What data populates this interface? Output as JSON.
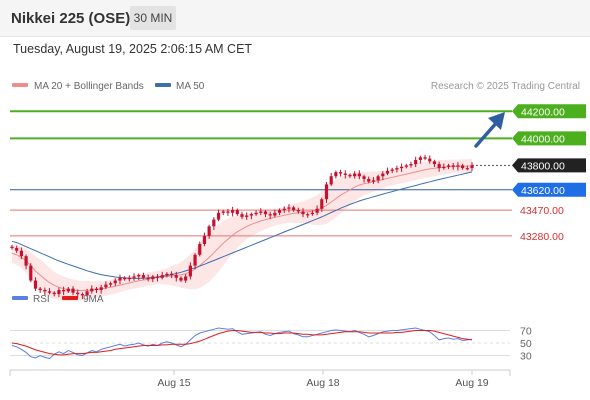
{
  "header": {
    "instrument": "Nikkei 225 (OSE)",
    "timeframe": "30 MIN",
    "timestamp": "Tuesday, August 19, 2025 2:06:15 AM CET"
  },
  "legend": {
    "ma20": "MA 20 + Bollinger Bands",
    "ma50": "MA 50",
    "credit": "Research © 2025 Trading Central",
    "rsi": "RSI",
    "ma9": "9MA"
  },
  "colors": {
    "candle": "#c8102e",
    "resistance": "#4caf1e",
    "pivot": "#2f5f9e",
    "support": "#e57373",
    "ma20": "#f08c8c",
    "ma50": "#3b6fb0",
    "bollinger_fill": "#fde2e2",
    "rsi": "#5b7fe0",
    "rsi_ma": "#e01e1e",
    "current": "#222222",
    "arrow": "#2f5f9e",
    "pivot_label": "#1e6ee6"
  },
  "chart_data": [
    {
      "type": "candlestick",
      "title": "Nikkei 225 (OSE)",
      "ylim": [
        42880,
        44320
      ],
      "x_ticks": [
        "Aug 15",
        "Aug 18",
        "Aug 19"
      ],
      "levels": [
        {
          "label": "44200.00",
          "value": 44200,
          "kind": "resistance"
        },
        {
          "label": "44000.00",
          "value": 44000,
          "kind": "resistance"
        },
        {
          "label": "43800.00",
          "value": 43800,
          "kind": "current"
        },
        {
          "label": "43620.00",
          "value": 43620,
          "kind": "pivot"
        },
        {
          "label": "43470.00",
          "value": 43470,
          "kind": "support"
        },
        {
          "label": "43280.00",
          "value": 43280,
          "kind": "support"
        }
      ],
      "close": [
        43190,
        43170,
        43130,
        43060,
        42950,
        42890,
        42880,
        42870,
        42860,
        42850,
        42880,
        42870,
        42890,
        42860,
        42850,
        42840,
        42870,
        42890,
        42880,
        42900,
        42920,
        42930,
        42950,
        42970,
        42960,
        42970,
        42980,
        42990,
        42970,
        42960,
        42980,
        42970,
        42990,
        43000,
        42990,
        42970,
        42950,
        42980,
        43060,
        43140,
        43220,
        43280,
        43350,
        43400,
        43450,
        43460,
        43450,
        43470,
        43440,
        43420,
        43430,
        43440,
        43450,
        43460,
        43440,
        43430,
        43450,
        43470,
        43480,
        43490,
        43470,
        43460,
        43440,
        43440,
        43450,
        43480,
        43550,
        43660,
        43720,
        43750,
        43740,
        43730,
        43720,
        43740,
        43720,
        43700,
        43680,
        43690,
        43720,
        43740,
        43760,
        43770,
        43780,
        43790,
        43800,
        43810,
        43840,
        43860,
        43850,
        43830,
        43810,
        43780,
        43790,
        43800,
        43790,
        43800,
        43780,
        43780,
        43800
      ],
      "series": [
        {
          "name": "MA 20 + Bollinger Bands",
          "values": [
            43150,
            43140,
            43120,
            43095,
            43060,
            43020,
            42990,
            42960,
            42935,
            42915,
            42900,
            42890,
            42882,
            42878,
            42876,
            42876,
            42878,
            42880,
            42884,
            42888,
            42894,
            42900,
            42908,
            42916,
            42924,
            42932,
            42940,
            42948,
            42954,
            42960,
            42966,
            42972,
            42976,
            42980,
            42984,
            42988,
            42992,
            43000,
            43015,
            43035,
            43060,
            43090,
            43120,
            43155,
            43190,
            43225,
            43255,
            43285,
            43310,
            43330,
            43350,
            43365,
            43378,
            43390,
            43400,
            43408,
            43416,
            43424,
            43432,
            43440,
            43446,
            43450,
            43454,
            43458,
            43462,
            43470,
            43485,
            43505,
            43530,
            43555,
            43580,
            43600,
            43620,
            43640,
            43655,
            43665,
            43672,
            43680,
            43688,
            43696,
            43704,
            43712,
            43720,
            43728,
            43736,
            43744,
            43752,
            43760,
            43768,
            43774,
            43779,
            43783,
            43787,
            43790,
            43792,
            43794,
            43795,
            43796,
            43798
          ]
        },
        {
          "name": "MA 50",
          "values": [
            43240,
            43230,
            43215,
            43200,
            43185,
            43170,
            43155,
            43140,
            43125,
            43110,
            43095,
            43082,
            43070,
            43058,
            43046,
            43034,
            43022,
            43012,
            43002,
            42994,
            42987,
            42981,
            42976,
            42972,
            42969,
            42967,
            42966,
            42966,
            42967,
            42969,
            42972,
            42976,
            42981,
            42987,
            42994,
            43002,
            43011,
            43021,
            43032,
            43044,
            43057,
            43070,
            43084,
            43098,
            43112,
            43126,
            43140,
            43154,
            43168,
            43182,
            43196,
            43210,
            43224,
            43238,
            43252,
            43266,
            43280,
            43294,
            43308,
            43322,
            43336,
            43350,
            43364,
            43378,
            43392,
            43406,
            43420,
            43436,
            43452,
            43468,
            43484,
            43498,
            43512,
            43525,
            43537,
            43548,
            43558,
            43568,
            43578,
            43588,
            43598,
            43607,
            43616,
            43625,
            43634,
            43643,
            43652,
            43661,
            43670,
            43679,
            43688,
            43696,
            43704,
            43712,
            43720,
            43728,
            43736,
            43744,
            43752
          ]
        }
      ]
    },
    {
      "type": "line",
      "title": "RSI",
      "ylim": [
        10,
        90
      ],
      "y_ticks": [
        "70",
        "50",
        "30"
      ],
      "series": [
        {
          "name": "RSI",
          "values": [
            46,
            44,
            40,
            35,
            28,
            26,
            30,
            27,
            25,
            32,
            36,
            33,
            38,
            35,
            31,
            30,
            34,
            38,
            36,
            40,
            42,
            44,
            46,
            48,
            45,
            47,
            48,
            50,
            47,
            45,
            48,
            46,
            50,
            52,
            50,
            47,
            44,
            48,
            55,
            62,
            66,
            68,
            70,
            72,
            74,
            73,
            72,
            73,
            68,
            64,
            65,
            66,
            67,
            68,
            64,
            62,
            65,
            67,
            68,
            69,
            65,
            63,
            60,
            60,
            62,
            64,
            66,
            68,
            70,
            71,
            70,
            69,
            68,
            70,
            67,
            64,
            60,
            62,
            65,
            68,
            69,
            70,
            70,
            71,
            72,
            73,
            74,
            72,
            70,
            68,
            62,
            55,
            57,
            58,
            56,
            57,
            54,
            55,
            56
          ]
        },
        {
          "name": "9MA",
          "values": [
            50,
            49,
            47,
            45,
            42,
            39,
            37,
            35,
            33,
            32,
            31,
            31,
            32,
            33,
            33,
            33,
            34,
            35,
            35,
            36,
            37,
            38,
            40,
            41,
            42,
            43,
            44,
            45,
            46,
            46,
            46,
            46,
            47,
            47,
            48,
            48,
            48,
            48,
            49,
            51,
            53,
            56,
            59,
            62,
            65,
            67,
            69,
            70,
            70,
            69,
            68,
            67,
            67,
            67,
            66,
            66,
            65,
            65,
            66,
            66,
            66,
            65,
            64,
            64,
            63,
            63,
            63,
            64,
            65,
            66,
            67,
            68,
            68,
            68,
            68,
            67,
            66,
            66,
            66,
            66,
            66,
            66,
            67,
            67,
            68,
            69,
            70,
            70,
            70,
            70,
            69,
            67,
            65,
            63,
            61,
            59,
            57,
            56,
            55
          ]
        }
      ]
    }
  ]
}
